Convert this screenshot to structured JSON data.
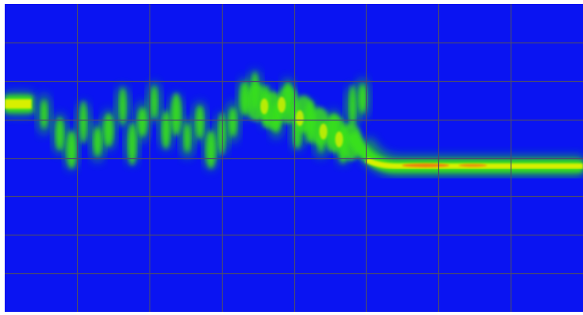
{
  "display": {
    "colors": {
      "background": "#ffffff",
      "plot_background": "#0a14f2",
      "grid": "#4a4a70",
      "signal_low": "#1fb43c",
      "signal_mid": "#39e01c",
      "signal_high": "#d8f000",
      "signal_peak": "#f07010"
    },
    "grid": {
      "vertical_divisions": 8,
      "horizontal_divisions": 8,
      "visible": true
    }
  }
}
